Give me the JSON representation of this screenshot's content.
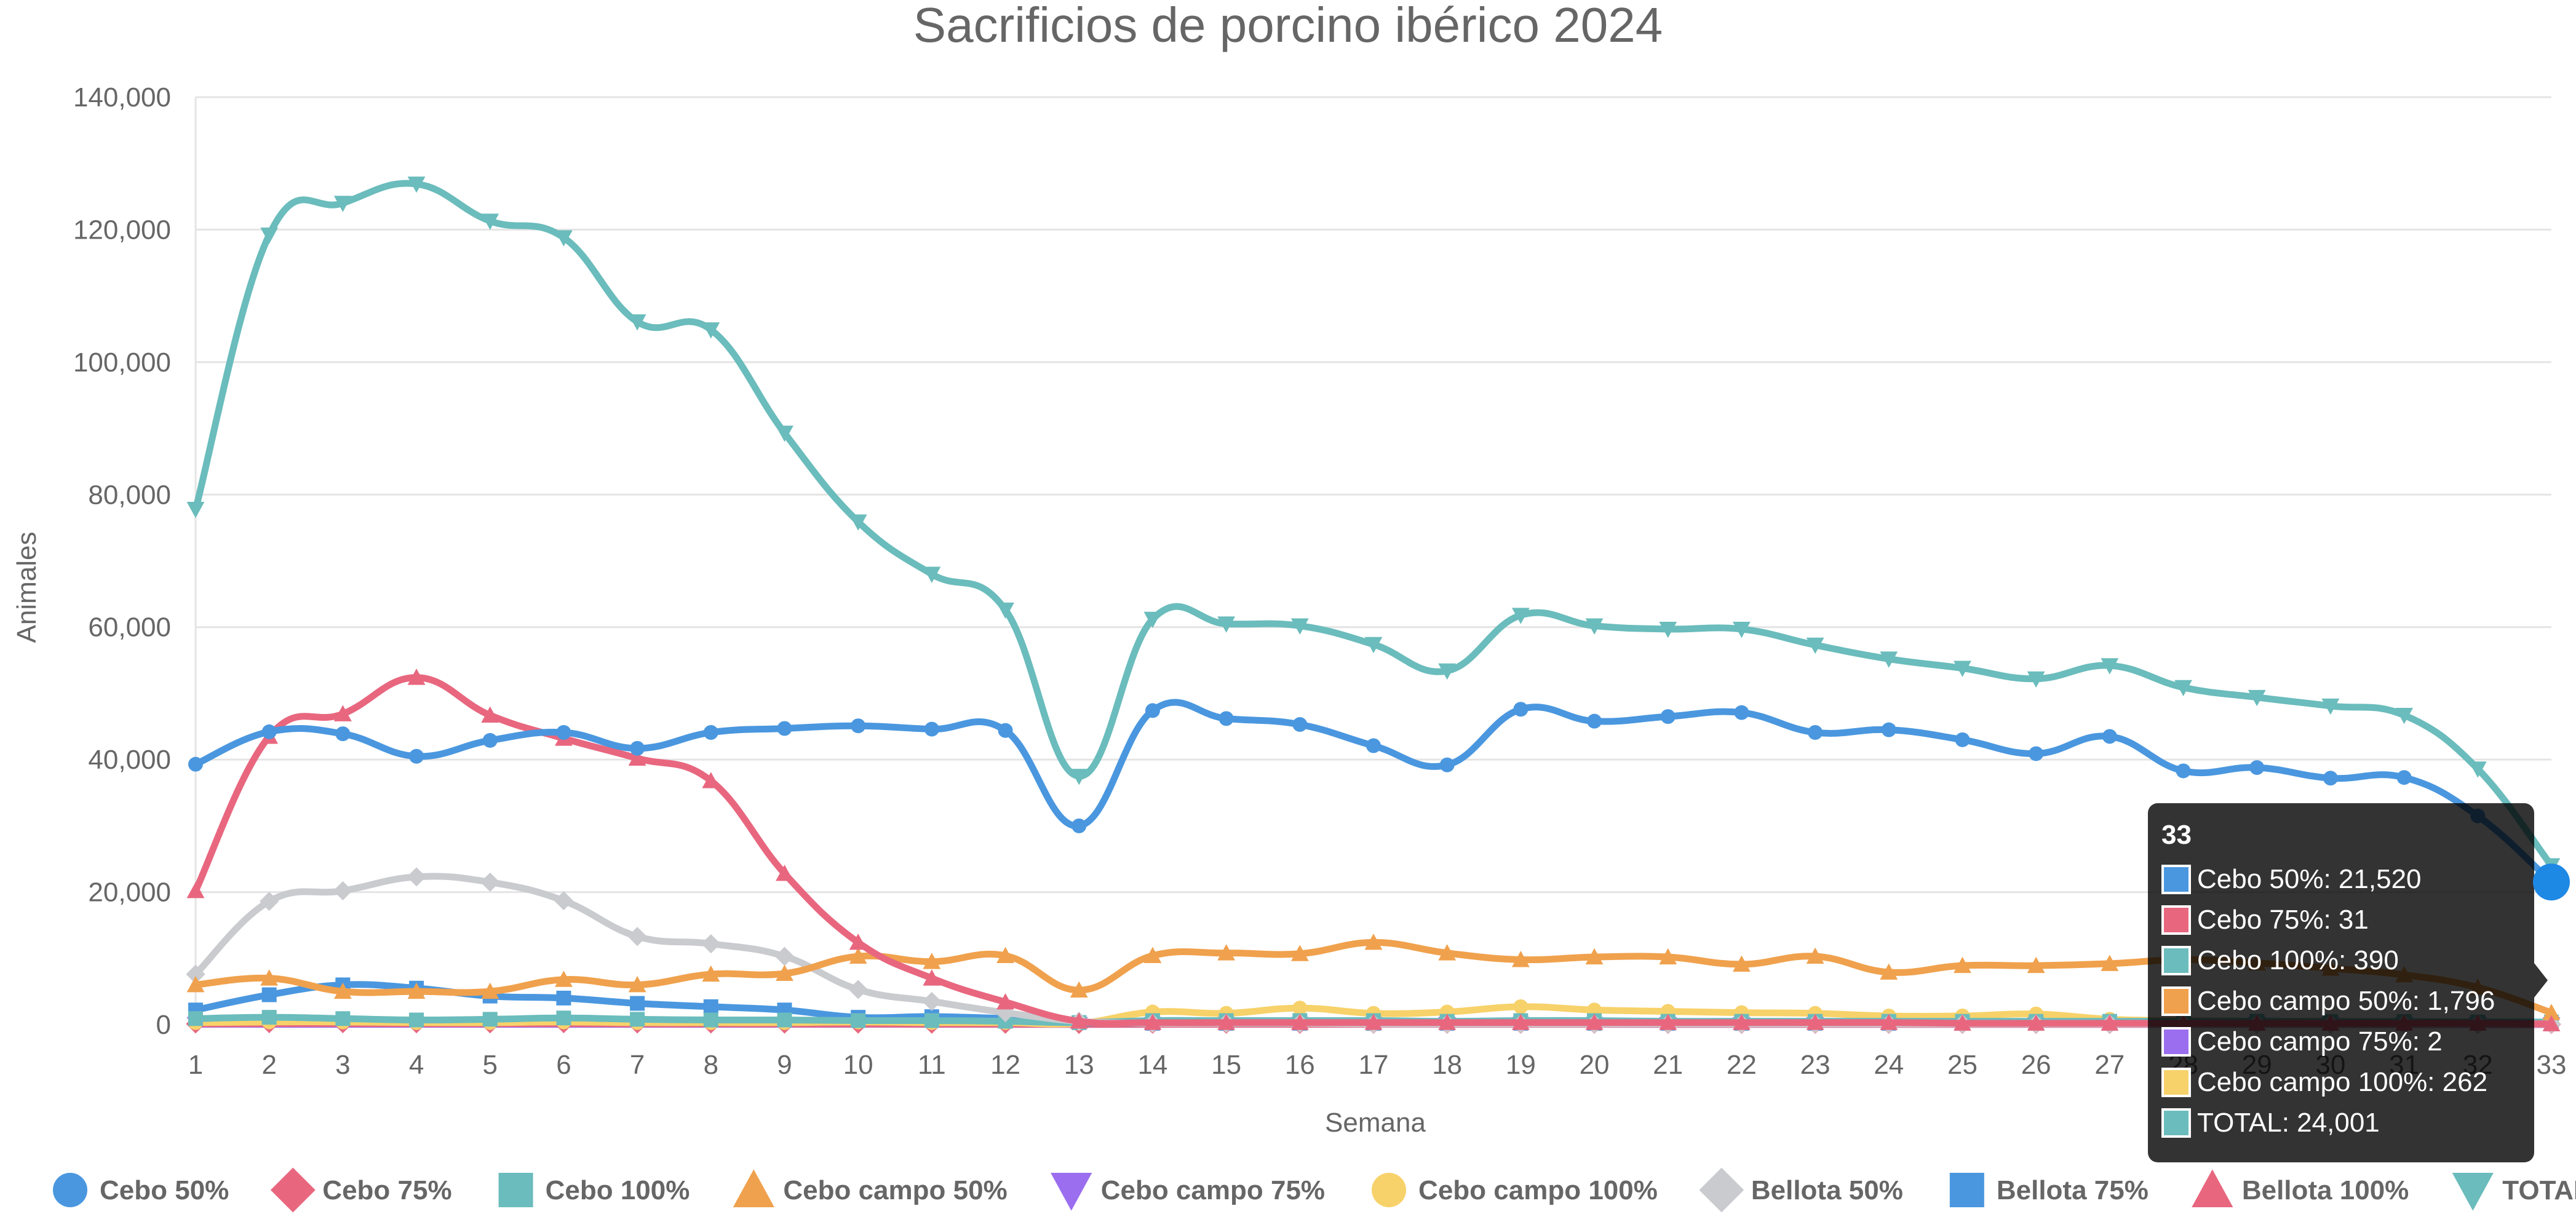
{
  "chart_data": {
    "type": "line",
    "title": "Sacrificios de porcino ibérico 2024",
    "xlabel": "Semana",
    "ylabel": "Animales",
    "ylim": [
      0,
      140000
    ],
    "yticks": [
      "0",
      "20,000",
      "40,000",
      "60,000",
      "80,000",
      "100,000",
      "120,000",
      "140,000"
    ],
    "categories": [
      "1",
      "2",
      "3",
      "4",
      "5",
      "6",
      "7",
      "8",
      "9",
      "10",
      "11",
      "12",
      "13",
      "14",
      "15",
      "16",
      "17",
      "18",
      "19",
      "20",
      "21",
      "22",
      "23",
      "24",
      "25",
      "26",
      "27",
      "28",
      "29",
      "30",
      "31",
      "32",
      "33"
    ],
    "grid": true,
    "legend_position": "bottom",
    "series": [
      {
        "name": "Cebo 50%",
        "color": "#4a97df",
        "marker": "circle",
        "values": [
          39300,
          44200,
          43900,
          40500,
          42900,
          44100,
          41700,
          44100,
          44700,
          45100,
          44600,
          44400,
          30000,
          47400,
          46200,
          45300,
          42100,
          39200,
          47600,
          45800,
          46500,
          47100,
          44100,
          44500,
          43000,
          40900,
          43500,
          38300,
          38800,
          37200,
          37300,
          31500,
          21520
        ]
      },
      {
        "name": "Cebo 75%",
        "color": "#e8677f",
        "marker": "diamond",
        "values": [
          100,
          150,
          150,
          120,
          120,
          150,
          100,
          100,
          80,
          80,
          70,
          60,
          30,
          50,
          50,
          50,
          50,
          50,
          50,
          50,
          40,
          40,
          40,
          40,
          40,
          40,
          40,
          40,
          40,
          40,
          40,
          40,
          31
        ]
      },
      {
        "name": "Cebo 100%",
        "color": "#6bbcbc",
        "marker": "square",
        "values": [
          900,
          1100,
          900,
          700,
          800,
          1000,
          800,
          700,
          700,
          600,
          600,
          500,
          300,
          600,
          600,
          600,
          600,
          500,
          600,
          600,
          500,
          500,
          500,
          500,
          500,
          500,
          500,
          500,
          500,
          450,
          450,
          400,
          390
        ]
      },
      {
        "name": "Cebo campo 50%",
        "color": "#f0a14d",
        "marker": "triangle",
        "values": [
          6000,
          7000,
          5000,
          5000,
          5000,
          6800,
          6000,
          7600,
          7700,
          10300,
          9500,
          10400,
          5200,
          10400,
          10800,
          10700,
          12400,
          10800,
          9800,
          10200,
          10200,
          9100,
          10300,
          7900,
          8900,
          8900,
          9200,
          9800,
          9300,
          8500,
          7500,
          5600,
          1796
        ]
      },
      {
        "name": "Cebo campo 75%",
        "color": "#9b6ef0",
        "marker": "triangle-down",
        "values": [
          50,
          40,
          40,
          40,
          40,
          40,
          40,
          40,
          40,
          40,
          40,
          30,
          20,
          30,
          30,
          30,
          30,
          30,
          30,
          30,
          20,
          20,
          20,
          20,
          20,
          20,
          20,
          20,
          20,
          10,
          10,
          5,
          2
        ]
      },
      {
        "name": "Cebo campo 100%",
        "color": "#f7d26a",
        "marker": "circle",
        "values": [
          300,
          400,
          400,
          300,
          300,
          400,
          300,
          300,
          300,
          400,
          300,
          300,
          200,
          1900,
          1700,
          2500,
          1700,
          1900,
          2700,
          2200,
          2000,
          1800,
          1700,
          1300,
          1300,
          1600,
          800,
          600,
          500,
          500,
          400,
          300,
          262
        ]
      },
      {
        "name": "Bellota 50%",
        "color": "#c9cbcf",
        "marker": "diamond",
        "values": [
          7600,
          18600,
          20200,
          22300,
          21500,
          18700,
          13300,
          12200,
          10300,
          5300,
          3500,
          1800,
          500,
          200,
          200,
          200,
          100,
          100,
          100,
          100,
          100,
          100,
          100,
          100,
          100,
          100,
          100,
          100,
          100,
          100,
          100,
          100,
          100
        ]
      },
      {
        "name": "Bellota 75%",
        "color": "#4a97df",
        "marker": "square",
        "values": [
          2200,
          4500,
          6000,
          5500,
          4300,
          4000,
          3200,
          2700,
          2200,
          1100,
          1200,
          900,
          300,
          200,
          200,
          200,
          200,
          200,
          200,
          200,
          200,
          200,
          200,
          200,
          200,
          200,
          200,
          200,
          200,
          200,
          200,
          200,
          100
        ]
      },
      {
        "name": "Bellota 100%",
        "color": "#e8677f",
        "marker": "triangle",
        "values": [
          20200,
          43500,
          46900,
          52400,
          46700,
          43200,
          40200,
          36800,
          22800,
          12400,
          7000,
          3400,
          500,
          300,
          300,
          300,
          300,
          300,
          300,
          300,
          300,
          300,
          300,
          300,
          200,
          200,
          200,
          200,
          200,
          200,
          200,
          200,
          100
        ]
      },
      {
        "name": "TOTAL",
        "color": "#6bbcbc",
        "marker": "triangle-down",
        "values": [
          77800,
          119200,
          124000,
          126900,
          121300,
          118800,
          106100,
          104900,
          89300,
          75900,
          68000,
          62600,
          37500,
          61200,
          60500,
          60200,
          57400,
          53400,
          61800,
          60200,
          59700,
          59700,
          57300,
          55200,
          53800,
          52200,
          54200,
          50900,
          49400,
          48100,
          46700,
          38600,
          24001
        ]
      }
    ],
    "tooltip": {
      "title": "33",
      "lines": [
        {
          "color": "#4a97df",
          "text": "Cebo 50%: 21,520"
        },
        {
          "color": "#e8677f",
          "text": "Cebo 75%: 31"
        },
        {
          "color": "#6bbcbc",
          "text": "Cebo 100%: 390"
        },
        {
          "color": "#f0a14d",
          "text": "Cebo campo 50%: 1,796"
        },
        {
          "color": "#9b6ef0",
          "text": "Cebo campo 75%: 2"
        },
        {
          "color": "#f7d26a",
          "text": "Cebo campo 100%: 262"
        },
        {
          "color": "#6bbcbc",
          "text": "TOTAL: 24,001"
        }
      ]
    }
  }
}
